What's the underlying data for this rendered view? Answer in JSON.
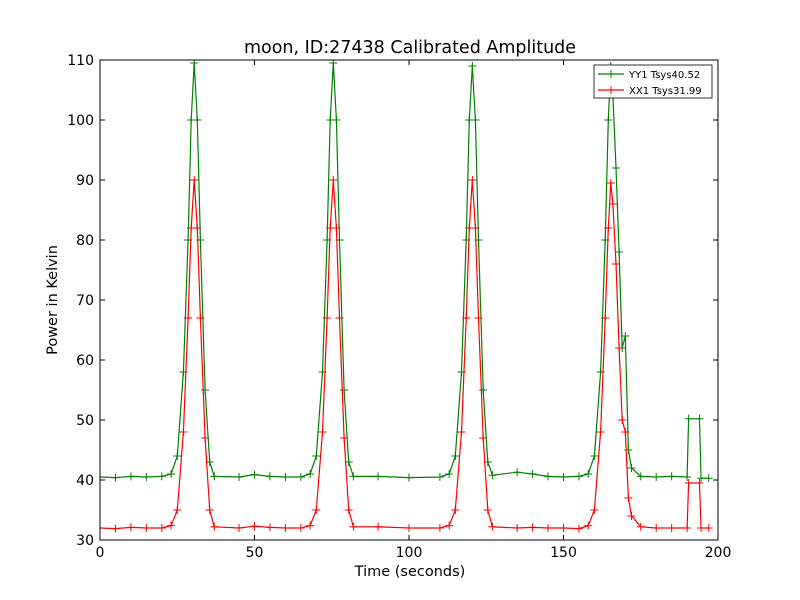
{
  "chart_data": {
    "type": "line",
    "title": "moon, ID:27438 Calibrated Amplitude",
    "xlabel": "Time (seconds)",
    "ylabel": "Power in Kelvin",
    "xlim": [
      0,
      200
    ],
    "ylim": [
      30,
      110
    ],
    "xticks": [
      0,
      50,
      100,
      150,
      200
    ],
    "yticks": [
      30,
      40,
      50,
      60,
      70,
      80,
      90,
      100,
      110
    ],
    "grid": false,
    "legend_position": "top-right",
    "marker": "+",
    "series": [
      {
        "name": "YY1 Tsys40.52",
        "color": "#008000",
        "points": [
          [
            0,
            40.5
          ],
          [
            5,
            40.4
          ],
          [
            10,
            40.6
          ],
          [
            15,
            40.5
          ],
          [
            20,
            40.6
          ],
          [
            23,
            41.0
          ],
          [
            25,
            44.0
          ],
          [
            27,
            58.0
          ],
          [
            28.5,
            80.0
          ],
          [
            29.5,
            100.0
          ],
          [
            30.5,
            109.5
          ],
          [
            31.5,
            100.0
          ],
          [
            32.5,
            80.0
          ],
          [
            34,
            55.0
          ],
          [
            35.5,
            43.0
          ],
          [
            37,
            40.6
          ],
          [
            45,
            40.5
          ],
          [
            50,
            40.9
          ],
          [
            55,
            40.6
          ],
          [
            60,
            40.5
          ],
          [
            65,
            40.5
          ],
          [
            68,
            41.0
          ],
          [
            70,
            44.0
          ],
          [
            72,
            58.0
          ],
          [
            73.5,
            80.0
          ],
          [
            74.5,
            100.0
          ],
          [
            75.5,
            109.5
          ],
          [
            76.5,
            100.0
          ],
          [
            77.5,
            80.0
          ],
          [
            79,
            55.0
          ],
          [
            80.5,
            43.0
          ],
          [
            82,
            40.6
          ],
          [
            90,
            40.6
          ],
          [
            100,
            40.4
          ],
          [
            110,
            40.5
          ],
          [
            113,
            41.0
          ],
          [
            115,
            44.0
          ],
          [
            117,
            58.0
          ],
          [
            118.5,
            80.0
          ],
          [
            119.5,
            100.0
          ],
          [
            120.5,
            109.0
          ],
          [
            121.5,
            100.0
          ],
          [
            122.5,
            80.0
          ],
          [
            124,
            55.0
          ],
          [
            125.5,
            43.0
          ],
          [
            127,
            40.8
          ],
          [
            135,
            41.3
          ],
          [
            140,
            41.0
          ],
          [
            145,
            40.6
          ],
          [
            150,
            40.5
          ],
          [
            155,
            40.6
          ],
          [
            158,
            41.0
          ],
          [
            160,
            44.0
          ],
          [
            162,
            58.0
          ],
          [
            163.5,
            80.0
          ],
          [
            164.5,
            100.0
          ],
          [
            165.3,
            109.0
          ],
          [
            166,
            104.0
          ],
          [
            167,
            92.0
          ],
          [
            168,
            78.0
          ],
          [
            169,
            62.0
          ],
          [
            170,
            64.0
          ],
          [
            171,
            45.0
          ],
          [
            172,
            42.0
          ],
          [
            175,
            40.6
          ],
          [
            180,
            40.5
          ],
          [
            185,
            40.6
          ],
          [
            190,
            40.5
          ],
          [
            190.5,
            50.2
          ],
          [
            194,
            50.2
          ],
          [
            194.5,
            40.3
          ],
          [
            197,
            40.3
          ]
        ]
      },
      {
        "name": "XX1 Tsys31.99",
        "color": "#ff0000",
        "points": [
          [
            0,
            32.0
          ],
          [
            5,
            31.9
          ],
          [
            10,
            32.1
          ],
          [
            15,
            32.0
          ],
          [
            20,
            32.0
          ],
          [
            23,
            32.4
          ],
          [
            25,
            35.0
          ],
          [
            27,
            48.0
          ],
          [
            28.5,
            67.0
          ],
          [
            29.5,
            82.0
          ],
          [
            30.5,
            90.0
          ],
          [
            31.5,
            82.0
          ],
          [
            32.5,
            67.0
          ],
          [
            34,
            47.0
          ],
          [
            35.5,
            35.0
          ],
          [
            37,
            32.2
          ],
          [
            45,
            32.0
          ],
          [
            50,
            32.3
          ],
          [
            55,
            32.1
          ],
          [
            60,
            32.0
          ],
          [
            65,
            32.0
          ],
          [
            68,
            32.4
          ],
          [
            70,
            35.0
          ],
          [
            72,
            48.0
          ],
          [
            73.5,
            67.0
          ],
          [
            74.5,
            82.0
          ],
          [
            75.5,
            90.0
          ],
          [
            76.5,
            82.0
          ],
          [
            77.5,
            67.0
          ],
          [
            79,
            47.0
          ],
          [
            80.5,
            35.0
          ],
          [
            82,
            32.2
          ],
          [
            90,
            32.2
          ],
          [
            100,
            32.0
          ],
          [
            110,
            32.0
          ],
          [
            113,
            32.4
          ],
          [
            115,
            35.0
          ],
          [
            117,
            48.0
          ],
          [
            118.5,
            67.0
          ],
          [
            119.5,
            82.0
          ],
          [
            120.5,
            90.0
          ],
          [
            121.5,
            82.0
          ],
          [
            122.5,
            67.0
          ],
          [
            124,
            47.0
          ],
          [
            125.5,
            35.0
          ],
          [
            127,
            32.2
          ],
          [
            135,
            32.0
          ],
          [
            140,
            32.1
          ],
          [
            145,
            32.0
          ],
          [
            150,
            32.0
          ],
          [
            155,
            31.9
          ],
          [
            158,
            32.4
          ],
          [
            160,
            35.0
          ],
          [
            162,
            48.0
          ],
          [
            163.5,
            67.0
          ],
          [
            164.5,
            82.0
          ],
          [
            165.3,
            89.5
          ],
          [
            166,
            86.0
          ],
          [
            167,
            76.0
          ],
          [
            168,
            62.0
          ],
          [
            169,
            50.0
          ],
          [
            170,
            48.0
          ],
          [
            171,
            37.0
          ],
          [
            172,
            34.0
          ],
          [
            175,
            32.2
          ],
          [
            180,
            32.0
          ],
          [
            185,
            32.0
          ],
          [
            190,
            32.0
          ],
          [
            190.5,
            39.5
          ],
          [
            194,
            39.5
          ],
          [
            194.5,
            32.0
          ],
          [
            197,
            32.0
          ]
        ]
      }
    ]
  }
}
